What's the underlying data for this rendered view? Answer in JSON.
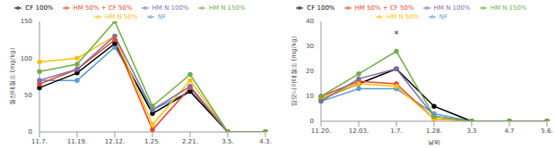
{
  "chart_data": [
    {
      "type": "line",
      "ylabel": "질산태질소 (mg/kg)",
      "legend": "top",
      "categories": [
        "11.7.",
        "11.19.",
        "12.12.",
        "1.25.",
        "2.21.",
        "3.5.",
        "4.3."
      ],
      "ylim": [
        0,
        150
      ],
      "yticks": [
        0,
        50,
        100,
        150
      ],
      "marker": "circle",
      "series": [
        {
          "name": "NF",
          "color": "#5b9bd5",
          "values": [
            70,
            70,
            115,
            30,
            55,
            0,
            0
          ]
        },
        {
          "name": "CF 100%",
          "color": "#000000",
          "values": [
            60,
            80,
            120,
            25,
            55,
            0,
            0
          ]
        },
        {
          "name": "HM 50% + CF 50%",
          "color": "#e8452c",
          "values": [
            65,
            85,
            125,
            3,
            60,
            0,
            0
          ]
        },
        {
          "name": "HM N 50%",
          "color": "#ffc000",
          "values": [
            95,
            100,
            130,
            10,
            70,
            0,
            0
          ]
        },
        {
          "name": "HM N 100%",
          "color": "#7f6fa6",
          "values": [
            70,
            85,
            130,
            30,
            62,
            0,
            0
          ]
        },
        {
          "name": "HM N 150%",
          "color": "#70ad47",
          "values": [
            82,
            92,
            150,
            35,
            78,
            0,
            0
          ]
        }
      ]
    },
    {
      "type": "line",
      "ylabel": "암모니아태질소 (mg/kg)",
      "xlabel": "날짜",
      "legend": "top",
      "categories": [
        "11.20.",
        "12.03.",
        "1.7.",
        "1.28.",
        "3.3",
        "4.7",
        "5.6."
      ],
      "ylim": [
        0,
        40
      ],
      "yticks": [
        0,
        10,
        20,
        30,
        40
      ],
      "marker": "circle",
      "annotations": [
        {
          "text": "*",
          "x": "1.7.",
          "y": 35
        }
      ],
      "series": [
        {
          "name": "NF",
          "color": "#5b9bd5",
          "values": [
            8,
            13,
            13,
            3,
            0,
            0,
            0
          ]
        },
        {
          "name": "CF 100%",
          "color": "#000000",
          "values": [
            9,
            15,
            21,
            6,
            0,
            0,
            0
          ]
        },
        {
          "name": "HM 50% + CF 50%",
          "color": "#e8452c",
          "values": [
            10,
            16,
            15,
            1,
            0,
            0,
            0
          ]
        },
        {
          "name": "HM N 50%",
          "color": "#ffc000",
          "values": [
            9,
            15,
            14,
            1,
            0,
            0,
            0
          ]
        },
        {
          "name": "HM N 100%",
          "color": "#7f6fa6",
          "values": [
            8,
            17,
            21,
            2,
            0,
            0,
            0
          ]
        },
        {
          "name": "HM N 150%",
          "color": "#70ad47",
          "values": [
            10,
            19,
            28,
            2,
            0,
            0,
            0
          ]
        }
      ]
    }
  ]
}
